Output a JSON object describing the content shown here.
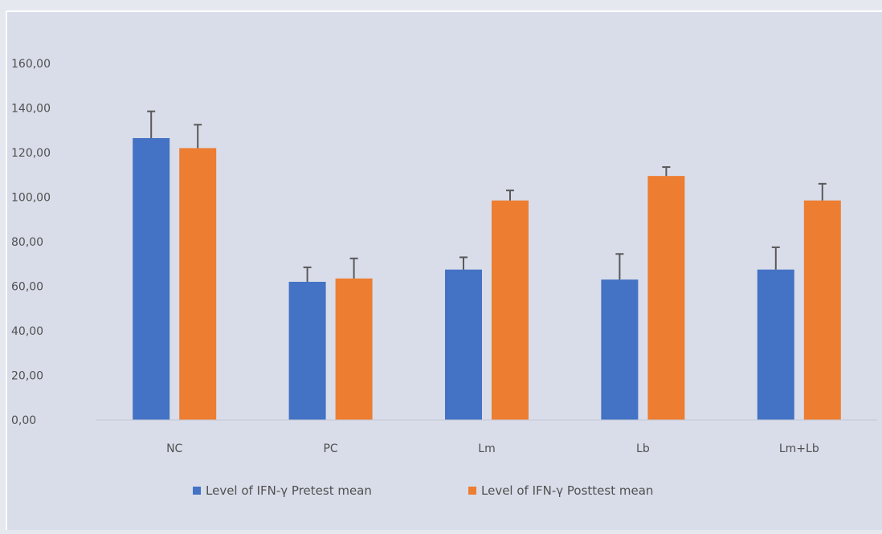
{
  "chart_data": {
    "type": "bar",
    "title": "",
    "xlabel": "",
    "ylabel": "",
    "categories": [
      "NC",
      "PC",
      "Lm",
      "Lb",
      "Lm+Lb"
    ],
    "series": [
      {
        "name": "Level of IFN-γ Pretest mean",
        "color": "#4472c4",
        "values": [
          126.5,
          62.0,
          67.5,
          63.0,
          67.5
        ],
        "errors": [
          12.0,
          6.5,
          5.5,
          11.5,
          10.0
        ]
      },
      {
        "name": "Level of IFN-γ Posttest mean",
        "color": "#ed7d31",
        "values": [
          122.0,
          63.5,
          98.5,
          109.5,
          98.5
        ],
        "errors": [
          10.5,
          9.0,
          4.5,
          4.0,
          7.5
        ]
      }
    ],
    "ylim": [
      0,
      160
    ],
    "yticks": [
      "0,00",
      "20,00",
      "40,00",
      "60,00",
      "80,00",
      "100,00",
      "120,00",
      "140,00",
      "160,00"
    ],
    "grid": false,
    "legend_position": "bottom"
  }
}
